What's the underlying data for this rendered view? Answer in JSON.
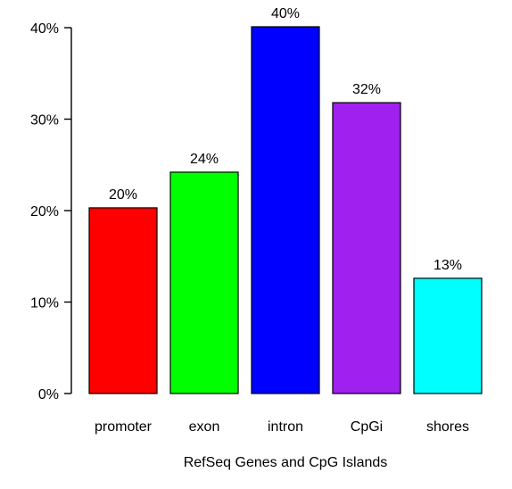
{
  "chart_data": {
    "type": "bar",
    "title": "",
    "xlabel": "RefSeq Genes and CpG Islands",
    "ylabel": "",
    "categories": [
      "promoter",
      "exon",
      "intron",
      "CpGi",
      "shores"
    ],
    "values": [
      20.3,
      24.2,
      40.1,
      31.8,
      12.6
    ],
    "value_labels": [
      "20%",
      "24%",
      "40%",
      "32%",
      "13%"
    ],
    "colors": [
      "#ff0000",
      "#00ff00",
      "#0000ff",
      "#a020f0",
      "#00ffff"
    ],
    "ylim": [
      0,
      40
    ],
    "yticks": [
      0,
      10,
      20,
      30,
      40
    ],
    "ytick_labels": [
      "0%",
      "10%",
      "20%",
      "30%",
      "40%"
    ],
    "grid": false,
    "legend": "none"
  }
}
